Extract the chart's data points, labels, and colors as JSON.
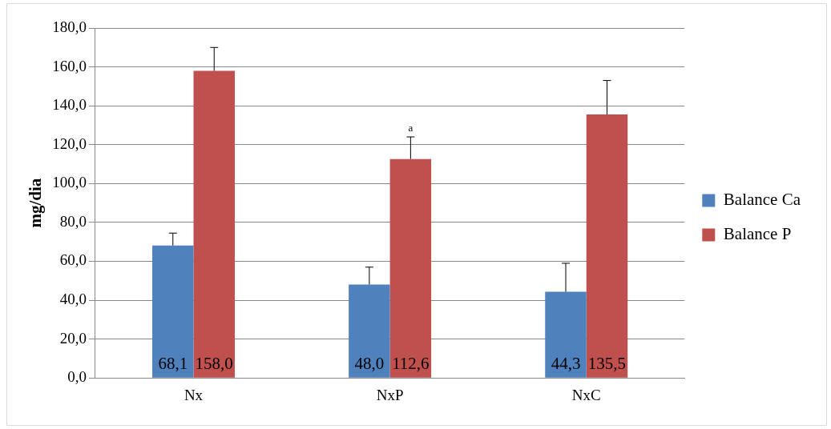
{
  "chart_data": {
    "type": "bar",
    "ylabel": "mg/dia",
    "categories": [
      "Nx",
      "NxP",
      "NxC"
    ],
    "series": [
      {
        "name": "Balance Ca",
        "color": "#4f81bd",
        "values": [
          68.1,
          48.0,
          44.3
        ],
        "value_labels": [
          "68,1",
          "48,0",
          "44,3"
        ],
        "errors": [
          [
            68.1,
            74.5
          ],
          [
            48.0,
            57
          ],
          [
            44.3,
            59
          ]
        ]
      },
      {
        "name": "Balance P",
        "color": "#c0504d",
        "values": [
          158.0,
          112.6,
          135.5
        ],
        "value_labels": [
          "158,0",
          "112,6",
          "135,5"
        ],
        "errors": [
          [
            158.0,
            170
          ],
          [
            112.6,
            124
          ],
          [
            135.5,
            153
          ]
        ]
      }
    ],
    "ylim": [
      0,
      180
    ],
    "yticks": [
      {
        "value": 0,
        "label": "0,0"
      },
      {
        "value": 20,
        "label": "20,0"
      },
      {
        "value": 40,
        "label": "40,0"
      },
      {
        "value": 60,
        "label": "60,0"
      },
      {
        "value": 80,
        "label": "80,0"
      },
      {
        "value": 100,
        "label": "100,0"
      },
      {
        "value": 120,
        "label": "120,0"
      },
      {
        "value": 140,
        "label": "140,0"
      },
      {
        "value": 160,
        "label": "160,0"
      },
      {
        "value": 180,
        "label": "180,0"
      }
    ],
    "annotations": [
      "a"
    ],
    "grid": "y",
    "legend": "right"
  }
}
